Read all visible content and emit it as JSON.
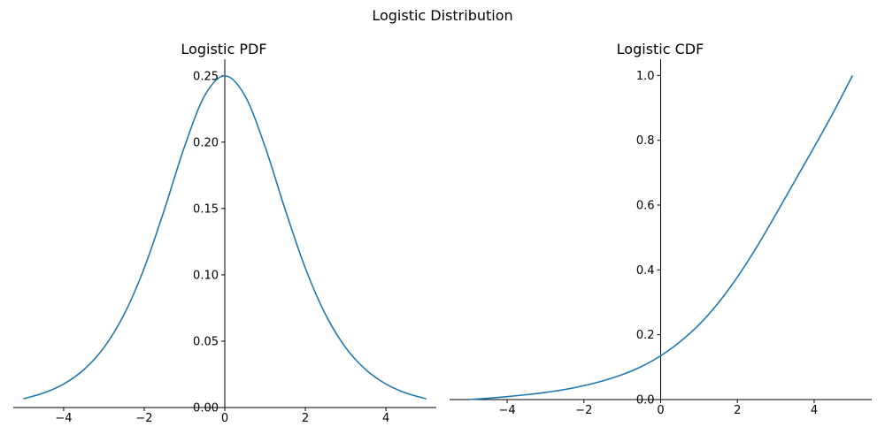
{
  "figure": {
    "suptitle": "Logistic Distribution"
  },
  "chart_data": [
    {
      "type": "line",
      "title": "Logistic PDF",
      "xlabel": "",
      "ylabel": "",
      "xlim": [
        -5.25,
        5.25
      ],
      "ylim": [
        0.0,
        0.2625
      ],
      "xticks": [
        -4,
        -2,
        0,
        2,
        4
      ],
      "xtick_labels": [
        "−4",
        "−2",
        "0",
        "2",
        "4"
      ],
      "yticks": [
        0.0,
        0.05,
        0.1,
        0.15,
        0.2,
        0.25
      ],
      "ytick_labels": [
        "0.00",
        "0.05",
        "0.10",
        "0.15",
        "0.20",
        "0.25"
      ],
      "spines": "centered axes through origin; top and right hidden",
      "grid": false,
      "color": "#1f77b4",
      "series": [
        {
          "x": [
            -5.0,
            -4.5,
            -4.0,
            -3.5,
            -3.0,
            -2.5,
            -2.0,
            -1.5,
            -1.0,
            -0.5,
            0.0,
            0.5,
            1.0,
            1.5,
            2.0,
            2.5,
            3.0,
            3.5,
            4.0,
            4.5,
            5.0
          ],
          "y": [
            0.0066,
            0.0109,
            0.0177,
            0.0285,
            0.0452,
            0.0701,
            0.105,
            0.1491,
            0.1966,
            0.235,
            0.25,
            0.235,
            0.1966,
            0.1491,
            0.105,
            0.0701,
            0.0452,
            0.0285,
            0.0177,
            0.0109,
            0.0066
          ]
        }
      ]
    },
    {
      "type": "line",
      "title": "Logistic CDF",
      "xlabel": "",
      "ylabel": "",
      "xlim": [
        -5.5,
        5.5
      ],
      "ylim": [
        0.0,
        1.05
      ],
      "xticks": [
        -4,
        -2,
        0,
        2,
        4
      ],
      "xtick_labels": [
        "−4",
        "−2",
        "0",
        "2",
        "4"
      ],
      "yticks": [
        0.0,
        0.2,
        0.4,
        0.6,
        0.8,
        1.0
      ],
      "ytick_labels": [
        "0.0",
        "0.2",
        "0.4",
        "0.6",
        "0.8",
        "1.0"
      ],
      "spines": "centered axes through origin; top and right hidden",
      "grid": false,
      "color": "#1f77b4",
      "series": [
        {
          "x": [
            -5.0,
            -4.5,
            -4.0,
            -3.5,
            -3.0,
            -2.5,
            -2.0,
            -1.5,
            -1.0,
            -0.5,
            0.0,
            0.5,
            1.0,
            1.5,
            2.0,
            2.5,
            3.0,
            3.5,
            4.0,
            4.5,
            5.0
          ],
          "y": [
            0.0,
            0.004,
            0.009,
            0.015,
            0.022,
            0.031,
            0.043,
            0.058,
            0.077,
            0.102,
            0.135,
            0.178,
            0.231,
            0.298,
            0.378,
            0.47,
            0.571,
            0.675,
            0.779,
            0.886,
            1.0
          ]
        }
      ]
    }
  ]
}
